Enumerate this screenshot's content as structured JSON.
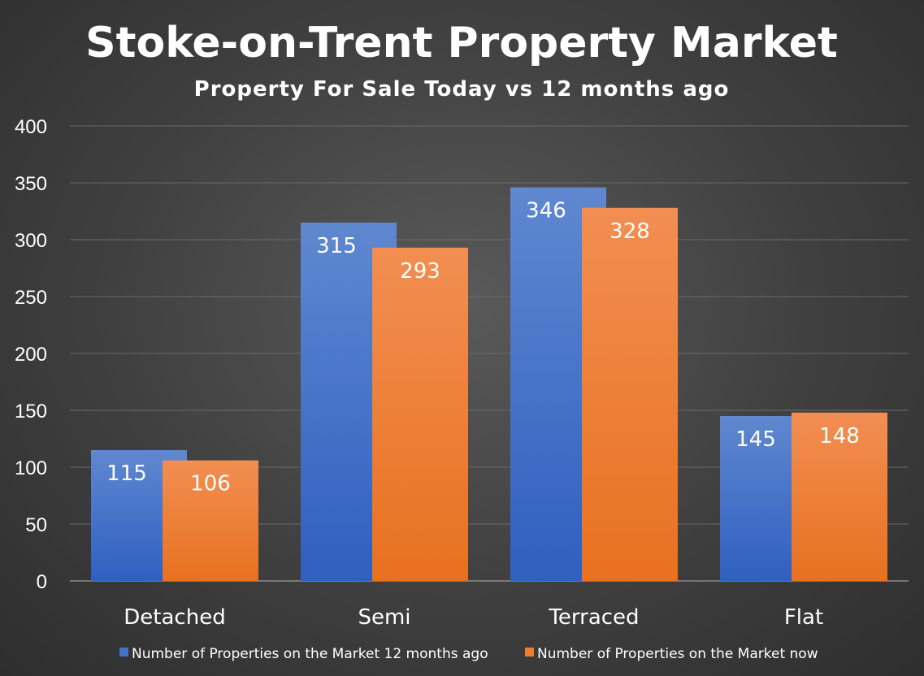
{
  "chart_data": {
    "type": "bar",
    "title": "Stoke-on-Trent Property Market",
    "subtitle": "Property For Sale Today vs 12 months ago",
    "categories": [
      "Detached",
      "Semi",
      "Terraced",
      "Flat"
    ],
    "series": [
      {
        "name": "Number of Properties on the Market 12 months ago",
        "values": [
          115,
          315,
          346,
          145
        ],
        "color": "#4472c4"
      },
      {
        "name": "Number of Properties on the Market now",
        "values": [
          106,
          293,
          328,
          148
        ],
        "color": "#ed7d31"
      }
    ],
    "ylim": [
      0,
      400
    ],
    "yticks": [
      "0",
      "50",
      "100",
      "150",
      "200",
      "250",
      "300",
      "350",
      "400"
    ],
    "grid": true,
    "legend": "bottom",
    "data_labels": true
  }
}
